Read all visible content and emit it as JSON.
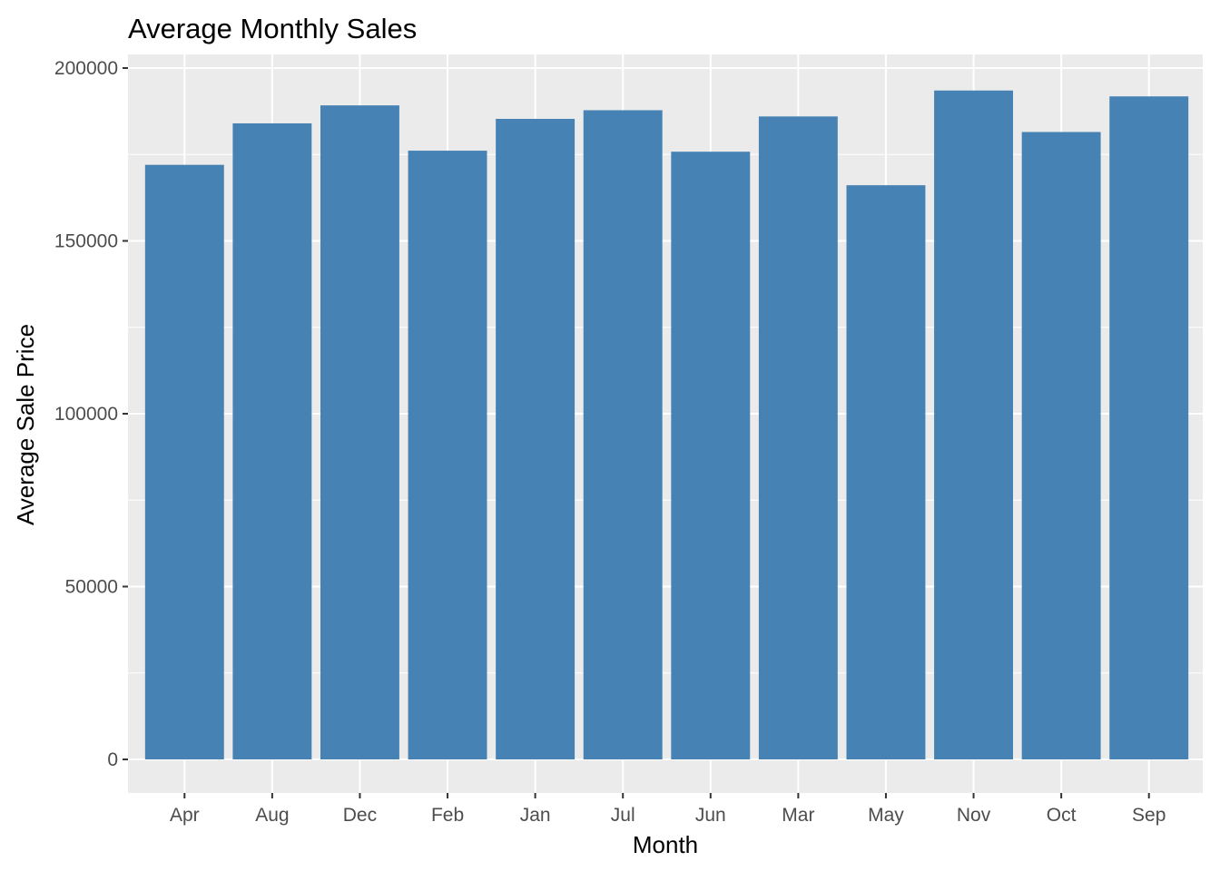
{
  "chart_data": {
    "type": "bar",
    "title": "Average Monthly Sales",
    "xlabel": "Month",
    "ylabel": "Average Sale Price",
    "categories": [
      "Apr",
      "Aug",
      "Dec",
      "Feb",
      "Jan",
      "Jul",
      "Jun",
      "Mar",
      "May",
      "Nov",
      "Oct",
      "Sep"
    ],
    "values": [
      172000,
      184000,
      189200,
      176100,
      185300,
      187800,
      175800,
      186000,
      166100,
      193500,
      181500,
      191800
    ],
    "ylim": [
      0,
      200000
    ],
    "yticks": [
      0,
      50000,
      100000,
      150000,
      200000
    ],
    "ytick_labels": [
      "0",
      "50000",
      "100000",
      "150000",
      "200000"
    ],
    "grid": true,
    "panel_color": "#ebebeb",
    "bar_color": "#4682b4"
  }
}
